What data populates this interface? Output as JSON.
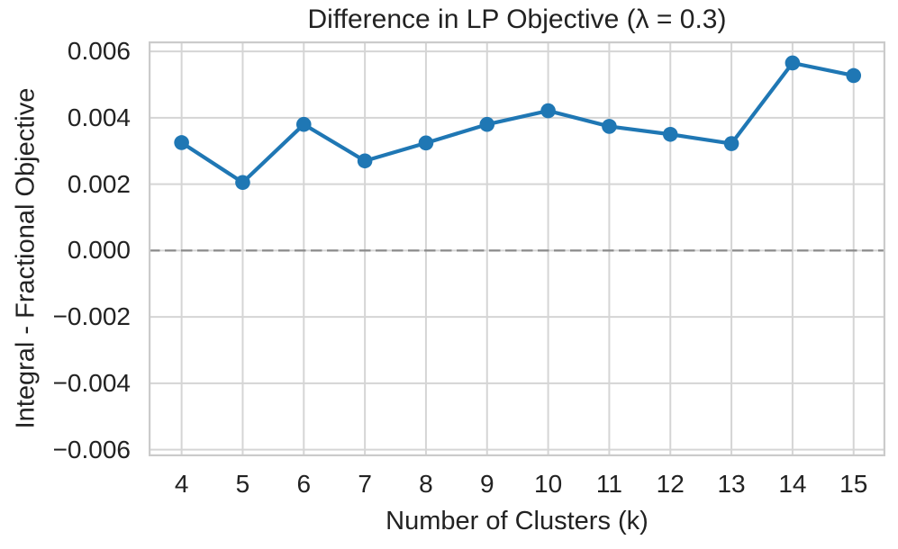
{
  "style": {
    "background": "#ffffff",
    "line_color": "#1f77b4",
    "marker_color": "#1f77b4",
    "grid_color": "#d5d5d5",
    "spine_color": "#cbcbcb",
    "zero_line_color": "#8a8a8a",
    "text_color": "#222222"
  },
  "chart_data": {
    "type": "line",
    "title": "Difference in LP Objective (λ = 0.3)",
    "xlabel": "Number of Clusters (k)",
    "ylabel": "Integral - Fractional Objective",
    "x": [
      4,
      5,
      6,
      7,
      8,
      9,
      10,
      11,
      12,
      13,
      14,
      15
    ],
    "y": [
      0.00325,
      0.00205,
      0.0038,
      0.0027,
      0.00324,
      0.0038,
      0.00421,
      0.00374,
      0.0035,
      0.00322,
      0.00565,
      0.00527
    ],
    "series": [
      {
        "name": "Integral - Fractional Objective difference",
        "values": [
          0.00325,
          0.00205,
          0.0038,
          0.0027,
          0.00324,
          0.0038,
          0.00421,
          0.00374,
          0.0035,
          0.00322,
          0.00565,
          0.00527
        ]
      }
    ],
    "xticks": {
      "values": [
        4,
        5,
        6,
        7,
        8,
        9,
        10,
        11,
        12,
        13,
        14,
        15
      ],
      "labels": [
        "4",
        "5",
        "6",
        "7",
        "8",
        "9",
        "10",
        "11",
        "12",
        "13",
        "14",
        "15"
      ]
    },
    "yticks": {
      "values": [
        0.006,
        0.004,
        0.002,
        0.0,
        -0.002,
        -0.004,
        -0.006
      ],
      "labels": [
        "0.006",
        "0.004",
        "0.002",
        "0.000",
        "−0.002",
        "−0.004",
        "−0.006"
      ]
    },
    "xlim": [
      3.46,
      15.52
    ],
    "ylim": [
      -0.0062,
      0.0063
    ],
    "grid": true,
    "legend": false,
    "zero_line": {
      "value": 0,
      "style": "dashed"
    },
    "marker": "circle"
  }
}
